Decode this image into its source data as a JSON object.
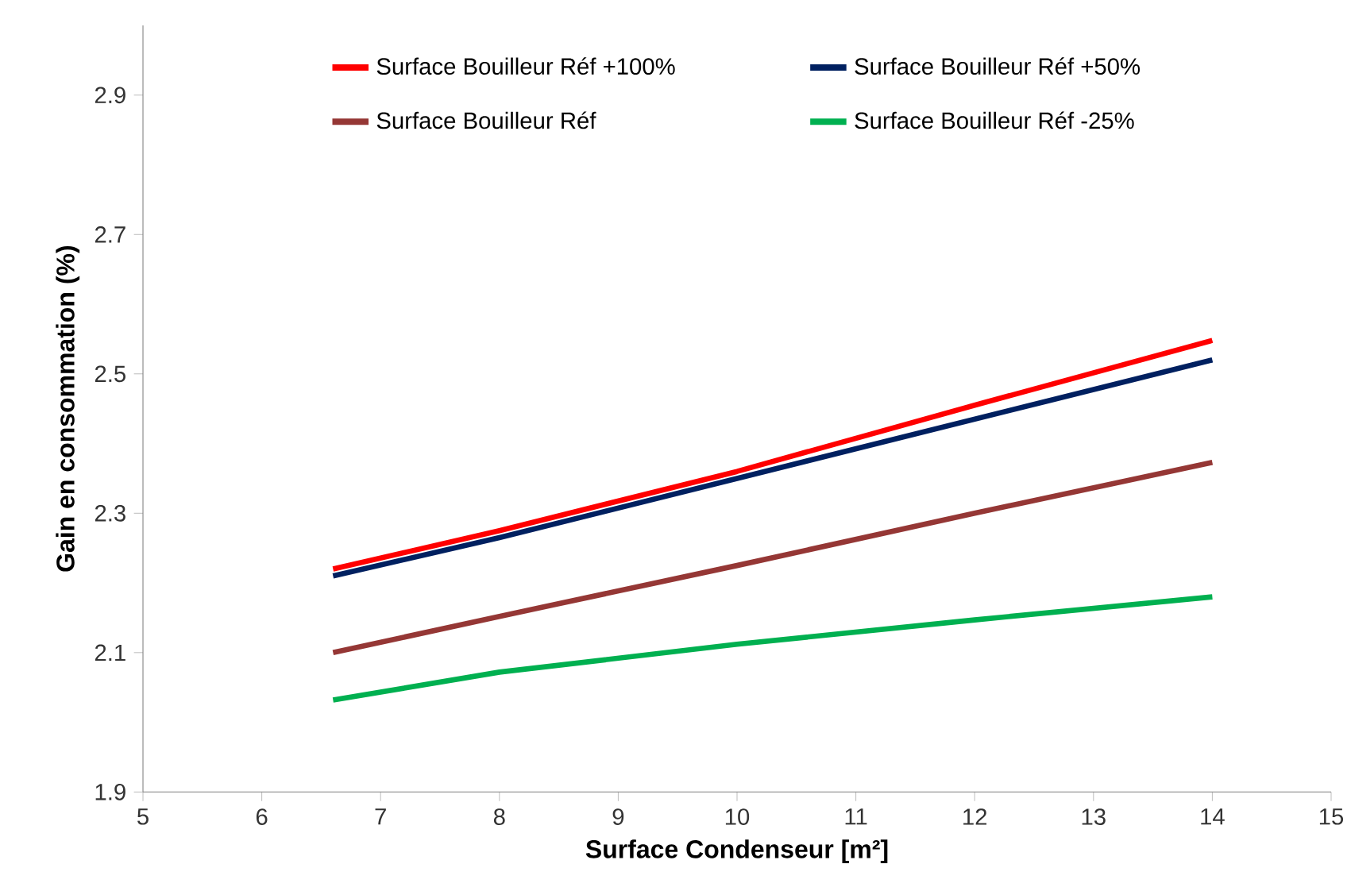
{
  "chart_data": {
    "type": "line",
    "xlabel": "Surface Condenseur [m²]",
    "ylabel": "Gain en consommation (%)",
    "x": [
      6.6,
      8,
      10,
      12,
      14
    ],
    "series": [
      {
        "name": "Surface Bouilleur Réf +100%",
        "color": "#ff0000",
        "values": [
          2.22,
          2.275,
          2.36,
          2.455,
          2.548
        ]
      },
      {
        "name": "Surface Bouilleur Réf +50%",
        "color": "#002060",
        "values": [
          2.21,
          2.265,
          2.35,
          2.435,
          2.52
        ]
      },
      {
        "name": "Surface Bouilleur Réf",
        "color": "#953735",
        "values": [
          2.1,
          2.152,
          2.225,
          2.3,
          2.373
        ]
      },
      {
        "name": "Surface Bouilleur Réf -25%",
        "color": "#00b050",
        "values": [
          2.032,
          2.072,
          2.112,
          2.147,
          2.18
        ]
      }
    ],
    "xlim": [
      5,
      15
    ],
    "xticks": [
      5,
      6,
      7,
      8,
      9,
      10,
      11,
      12,
      13,
      14,
      15
    ],
    "ylim": [
      1.9,
      3.0
    ],
    "yticks": [
      1.9,
      2.1,
      2.3,
      2.5,
      2.7,
      2.9
    ],
    "grid": false,
    "legend": "top",
    "marker": "none",
    "line_style": "solid"
  }
}
